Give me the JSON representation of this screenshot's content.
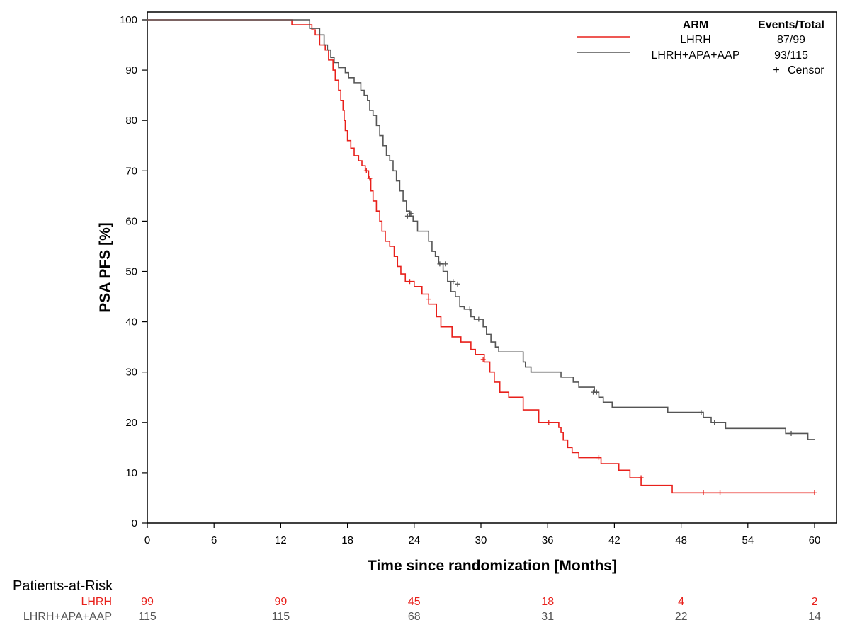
{
  "chart_data": {
    "type": "line",
    "subtype": "kaplan-meier",
    "xlabel": "Time since randomization [Months]",
    "ylabel": "PSA PFS [%]",
    "xlim": [
      0,
      60
    ],
    "ylim": [
      0,
      100
    ],
    "xticks": [
      0,
      6,
      12,
      18,
      24,
      30,
      36,
      42,
      48,
      54,
      60
    ],
    "yticks": [
      0,
      10,
      20,
      30,
      40,
      50,
      60,
      70,
      80,
      90,
      100
    ],
    "grid": false,
    "legend": {
      "placement": "top-right",
      "col_arm": "ARM",
      "col_events": "Events/Total",
      "censor_label": "Censor",
      "censor_symbol": "+"
    },
    "series": [
      {
        "name": "LHRH",
        "events_total": "87/99",
        "color": "#e8201b",
        "steps": [
          [
            0,
            100
          ],
          [
            13.0,
            99.0
          ],
          [
            14.8,
            98.0
          ],
          [
            15.1,
            97.0
          ],
          [
            15.5,
            95.0
          ],
          [
            16.0,
            94.0
          ],
          [
            16.3,
            92.0
          ],
          [
            16.7,
            90.0
          ],
          [
            16.9,
            88.0
          ],
          [
            17.2,
            86.0
          ],
          [
            17.4,
            84.0
          ],
          [
            17.6,
            82.0
          ],
          [
            17.7,
            80.0
          ],
          [
            17.8,
            78.0
          ],
          [
            18.0,
            76.0
          ],
          [
            18.3,
            74.5
          ],
          [
            18.6,
            73.0
          ],
          [
            19.0,
            72.0
          ],
          [
            19.3,
            71.0
          ],
          [
            19.6,
            70.0
          ],
          [
            19.9,
            68.5
          ],
          [
            20.1,
            66.0
          ],
          [
            20.3,
            64.0
          ],
          [
            20.6,
            62.0
          ],
          [
            20.9,
            60.0
          ],
          [
            21.1,
            58.0
          ],
          [
            21.4,
            56.0
          ],
          [
            21.8,
            55.0
          ],
          [
            22.2,
            53.0
          ],
          [
            22.5,
            51.0
          ],
          [
            22.8,
            49.5
          ],
          [
            23.2,
            48.0
          ],
          [
            24.0,
            47.0
          ],
          [
            24.7,
            45.5
          ],
          [
            25.3,
            43.5
          ],
          [
            26.0,
            41.0
          ],
          [
            26.4,
            39.0
          ],
          [
            27.4,
            37.0
          ],
          [
            28.2,
            36.0
          ],
          [
            29.1,
            34.5
          ],
          [
            29.5,
            33.5
          ],
          [
            30.3,
            32.0
          ],
          [
            30.8,
            30.0
          ],
          [
            31.2,
            28.0
          ],
          [
            31.7,
            26.0
          ],
          [
            32.5,
            25.0
          ],
          [
            33.8,
            22.5
          ],
          [
            35.2,
            20.0
          ],
          [
            37.0,
            19.0
          ],
          [
            37.2,
            18.0
          ],
          [
            37.4,
            16.5
          ],
          [
            37.8,
            15.0
          ],
          [
            38.2,
            14.0
          ],
          [
            38.8,
            13.0
          ],
          [
            40.8,
            11.8
          ],
          [
            42.4,
            10.5
          ],
          [
            43.4,
            9.0
          ],
          [
            44.4,
            7.5
          ],
          [
            47.2,
            6.0
          ],
          [
            60,
            6.0
          ]
        ],
        "censors": [
          [
            19.7,
            70.0
          ],
          [
            20.0,
            68.5
          ],
          [
            23.6,
            48.0
          ],
          [
            25.3,
            44.5
          ],
          [
            30.2,
            32.5
          ],
          [
            36.1,
            20.0
          ],
          [
            40.6,
            13.0
          ],
          [
            44.4,
            9.0
          ],
          [
            50.0,
            6.0
          ],
          [
            51.5,
            6.0
          ],
          [
            60.0,
            6.0
          ]
        ]
      },
      {
        "name": "LHRH+APA+AAP",
        "events_total": "93/115",
        "color": "#555555",
        "steps": [
          [
            0,
            100
          ],
          [
            14.6,
            98.3
          ],
          [
            15.5,
            97.0
          ],
          [
            15.9,
            95.0
          ],
          [
            16.2,
            94.0
          ],
          [
            16.5,
            92.5
          ],
          [
            16.8,
            91.5
          ],
          [
            17.2,
            90.5
          ],
          [
            17.8,
            89.5
          ],
          [
            18.1,
            88.5
          ],
          [
            18.6,
            87.5
          ],
          [
            19.2,
            86.0
          ],
          [
            19.5,
            85.0
          ],
          [
            19.8,
            84.0
          ],
          [
            20.0,
            82.0
          ],
          [
            20.3,
            81.0
          ],
          [
            20.6,
            79.0
          ],
          [
            20.9,
            77.0
          ],
          [
            21.2,
            75.0
          ],
          [
            21.5,
            73.0
          ],
          [
            21.8,
            72.0
          ],
          [
            22.1,
            70.0
          ],
          [
            22.4,
            68.0
          ],
          [
            22.7,
            66.0
          ],
          [
            23.0,
            64.0
          ],
          [
            23.3,
            62.0
          ],
          [
            23.6,
            61.0
          ],
          [
            23.9,
            60.0
          ],
          [
            24.3,
            58.0
          ],
          [
            25.3,
            56.0
          ],
          [
            25.6,
            54.0
          ],
          [
            25.9,
            53.0
          ],
          [
            26.2,
            51.5
          ],
          [
            26.6,
            50.0
          ],
          [
            27.0,
            48.0
          ],
          [
            27.3,
            46.0
          ],
          [
            27.7,
            45.0
          ],
          [
            28.1,
            43.0
          ],
          [
            28.5,
            42.5
          ],
          [
            29.1,
            41.0
          ],
          [
            29.4,
            40.5
          ],
          [
            30.2,
            39.0
          ],
          [
            30.5,
            37.5
          ],
          [
            30.9,
            36.0
          ],
          [
            31.3,
            35.0
          ],
          [
            31.6,
            34.0
          ],
          [
            33.8,
            32.0
          ],
          [
            34.0,
            31.0
          ],
          [
            34.5,
            30.0
          ],
          [
            37.2,
            29.0
          ],
          [
            38.3,
            28.0
          ],
          [
            38.8,
            27.0
          ],
          [
            40.2,
            26.0
          ],
          [
            40.6,
            25.0
          ],
          [
            41.0,
            24.0
          ],
          [
            41.8,
            23.0
          ],
          [
            46.8,
            22.0
          ],
          [
            50.0,
            21.0
          ],
          [
            50.7,
            20.0
          ],
          [
            52.0,
            18.8
          ],
          [
            57.4,
            17.8
          ],
          [
            59.4,
            16.6
          ],
          [
            60,
            16.6
          ]
        ],
        "censors": [
          [
            23.4,
            61.0
          ],
          [
            23.7,
            61.5
          ],
          [
            26.3,
            51.5
          ],
          [
            26.8,
            51.5
          ],
          [
            27.5,
            48.0
          ],
          [
            27.9,
            47.5
          ],
          [
            29.0,
            42.5
          ],
          [
            29.8,
            40.5
          ],
          [
            40.1,
            26.0
          ],
          [
            40.4,
            26.0
          ],
          [
            49.8,
            22.0
          ],
          [
            51.0,
            20.0
          ],
          [
            57.9,
            17.8
          ]
        ]
      }
    ],
    "risk_table": {
      "title": "Patients-at-Risk",
      "times": [
        0,
        12,
        24,
        36,
        48,
        60
      ],
      "rows": [
        {
          "label": "LHRH",
          "values": [
            "99",
            "99",
            "45",
            "18",
            "4",
            "2"
          ],
          "color": "#e8201b"
        },
        {
          "label": "LHRH+APA+AAP",
          "values": [
            "115",
            "115",
            "68",
            "31",
            "22",
            "14"
          ],
          "color": "#555555"
        }
      ]
    }
  }
}
